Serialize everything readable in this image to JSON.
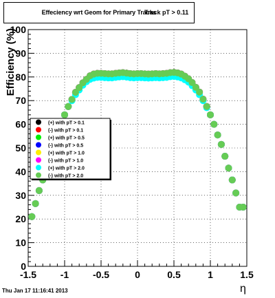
{
  "title": "Effeciency wrt Geom for Primary Tracks",
  "title_overlap": "Track pT > 0.11",
  "footer": "Thu Jan 17 11:16:41 2013",
  "chart_data": {
    "type": "scatter",
    "title": "Effeciency wrt Geom for Primary Tracks",
    "xlabel": "η",
    "ylabel": "Efficiency (%)",
    "xlim": [
      -1.5,
      1.5
    ],
    "ylim": [
      0,
      100
    ],
    "xticks": [
      "-1.5",
      "-1",
      "-0.5",
      "0",
      "0.5",
      "1",
      "1.5"
    ],
    "yticks": [
      "0",
      "10",
      "20",
      "30",
      "40",
      "50",
      "60",
      "70",
      "80",
      "90",
      "100"
    ],
    "grid": true,
    "legend_position": "left-middle",
    "x": [
      -1.45,
      -1.4,
      -1.35,
      -1.3,
      -1.25,
      -1.2,
      -1.15,
      -1.1,
      -1.05,
      -1.0,
      -0.95,
      -0.9,
      -0.85,
      -0.8,
      -0.75,
      -0.7,
      -0.65,
      -0.6,
      -0.55,
      -0.5,
      -0.45,
      -0.4,
      -0.35,
      -0.3,
      -0.25,
      -0.2,
      -0.15,
      -0.1,
      -0.05,
      0.0,
      0.05,
      0.1,
      0.15,
      0.2,
      0.25,
      0.3,
      0.35,
      0.4,
      0.45,
      0.5,
      0.55,
      0.6,
      0.65,
      0.7,
      0.75,
      0.8,
      0.85,
      0.9,
      0.95,
      1.0,
      1.05,
      1.1,
      1.15,
      1.2,
      1.25,
      1.3,
      1.35,
      1.4,
      1.45
    ],
    "series": [
      {
        "name": "(+) with pT > 0.1",
        "color": "#000000",
        "marker": "circle",
        "values": [
          21,
          26.5,
          32,
          36.5,
          41.5,
          46.5,
          51.5,
          55.5,
          60,
          64,
          67.5,
          70.5,
          73.5,
          75.5,
          77.5,
          79,
          80.5,
          81.2,
          81.5,
          81.5,
          81.4,
          81.3,
          81.3,
          81.5,
          81.7,
          81.8,
          81.6,
          81.4,
          81.3,
          81.4,
          81.4,
          81.3,
          81.2,
          81.3,
          81.4,
          81.3,
          81.4,
          81.5,
          81.8,
          81.9,
          81.7,
          81.2,
          80.3,
          79.2,
          77.6,
          75.6,
          73.6,
          70.6,
          67.5,
          64,
          60,
          55.5,
          51.5,
          46.5,
          41.5,
          36.5,
          31,
          25,
          25
        ]
      },
      {
        "name": "(-) with pT > 0.1",
        "color": "#ff0000",
        "marker": "circle",
        "values": [
          21,
          26.5,
          32,
          36.5,
          41.5,
          46.5,
          51.5,
          55.5,
          60,
          64,
          67.5,
          70.5,
          73.5,
          75.5,
          77.5,
          79,
          80.5,
          81.2,
          81.5,
          81.5,
          81.4,
          81.3,
          81.3,
          81.5,
          81.7,
          81.8,
          81.6,
          81.4,
          81.3,
          81.4,
          81.4,
          81.3,
          81.2,
          81.3,
          81.4,
          81.3,
          81.4,
          81.5,
          81.8,
          81.9,
          81.7,
          81.2,
          80.3,
          79.2,
          77.6,
          75.6,
          73.6,
          70.6,
          67.5,
          64,
          60,
          55.5,
          51.5,
          46.5,
          41.5,
          36.5,
          31,
          25,
          25
        ]
      },
      {
        "name": "(+) with pT > 0.5",
        "color": "#00ee00",
        "marker": "circle",
        "values": [
          21,
          26.5,
          32,
          36.5,
          41.5,
          46.5,
          51.5,
          55.5,
          60,
          64,
          67.5,
          70.5,
          73.5,
          75.5,
          77.5,
          79,
          80.5,
          81.2,
          81.5,
          81.5,
          81.4,
          81.3,
          81.3,
          81.5,
          81.7,
          81.8,
          81.6,
          81.4,
          81.3,
          81.4,
          81.4,
          81.3,
          81.2,
          81.3,
          81.4,
          81.3,
          81.4,
          81.5,
          81.8,
          81.9,
          81.7,
          81.2,
          80.3,
          79.2,
          77.6,
          75.6,
          73.6,
          70.6,
          67.5,
          64,
          60,
          55.5,
          51.5,
          46.5,
          41.5,
          36.5,
          31,
          25,
          25
        ]
      },
      {
        "name": "(-) with pT > 0.5",
        "color": "#0000ff",
        "marker": "circle",
        "values": [
          21,
          26.5,
          32,
          36.5,
          41.5,
          46.5,
          51.5,
          55.5,
          60,
          64,
          67.5,
          70.5,
          73.5,
          75.5,
          77.5,
          79,
          80.5,
          81.2,
          81.5,
          81.5,
          81.4,
          81.3,
          81.3,
          81.5,
          81.7,
          81.8,
          81.6,
          81.4,
          81.3,
          81.4,
          81.4,
          81.3,
          81.2,
          81.3,
          81.4,
          81.3,
          81.4,
          81.5,
          81.8,
          81.9,
          81.7,
          81.2,
          80.3,
          79.2,
          77.6,
          75.6,
          73.6,
          70.6,
          67.5,
          64,
          60,
          55.5,
          51.5,
          46.5,
          41.5,
          36.5,
          31,
          25,
          25
        ]
      },
      {
        "name": "(+) with pT > 1.0",
        "color": "#ffee00",
        "marker": "circle",
        "values": [
          21,
          26.5,
          32,
          36.5,
          41.5,
          46.5,
          51.5,
          55.5,
          60,
          64,
          67.5,
          70.5,
          73.5,
          75.5,
          77.5,
          79,
          80.5,
          81.2,
          81.5,
          81.5,
          81.4,
          81.3,
          81.3,
          81.5,
          81.7,
          81.8,
          81.6,
          81.4,
          81.3,
          81.4,
          81.4,
          81.3,
          81.2,
          81.3,
          81.4,
          81.3,
          81.4,
          81.5,
          81.8,
          81.9,
          81.7,
          81.2,
          80.3,
          79.2,
          77.6,
          75.6,
          73.6,
          70.6,
          67.5,
          64,
          60,
          55.5,
          51.5,
          46.5,
          41.5,
          36.5,
          31,
          25,
          25
        ]
      },
      {
        "name": "(-) with pT > 1.0",
        "color": "#ff00ff",
        "marker": "circle",
        "values": [
          21,
          26.5,
          32,
          36.5,
          41.5,
          46.5,
          51.5,
          55.5,
          60,
          64,
          67.5,
          70.5,
          73.5,
          75.5,
          77.5,
          79,
          80.5,
          81.2,
          81.5,
          81.5,
          81.4,
          81.3,
          81.3,
          81.5,
          81.7,
          81.8,
          81.6,
          81.4,
          81.3,
          81.4,
          81.4,
          81.3,
          81.2,
          81.3,
          81.4,
          81.3,
          81.4,
          81.5,
          81.8,
          81.9,
          81.7,
          81.2,
          80.3,
          79.2,
          77.6,
          75.6,
          73.6,
          70.6,
          67.5,
          64,
          60,
          55.5,
          51.5,
          46.5,
          41.5,
          36.5,
          31,
          25,
          25
        ]
      },
      {
        "name": "(+) with pT > 2.0",
        "color": "#00ffff",
        "marker": "circle",
        "values": [
          21,
          26.5,
          32,
          36.5,
          41.5,
          46.5,
          51.5,
          55.5,
          60,
          64,
          67.5,
          70,
          72.5,
          74.5,
          76.5,
          78,
          79,
          79.5,
          79.8,
          79.8,
          79.7,
          79.6,
          79.6,
          79.8,
          80,
          80.1,
          79.9,
          79.7,
          79.6,
          79.7,
          79.7,
          79.6,
          79.5,
          79.6,
          79.7,
          79.6,
          79.7,
          79.8,
          80.1,
          80.2,
          80,
          79.6,
          78.8,
          77.8,
          76.3,
          74.5,
          72.5,
          70,
          67,
          64,
          60,
          55.5,
          51.5,
          46.5,
          41.5,
          36.5,
          31,
          25,
          25
        ]
      },
      {
        "name": "(-) with pT > 2.0",
        "color": "#66cc55",
        "marker": "circle",
        "values": [
          21,
          26.5,
          32,
          36.5,
          41.5,
          46.5,
          51.5,
          55.5,
          60,
          64,
          67.5,
          70.5,
          73.5,
          75.5,
          77.5,
          79,
          80.5,
          81.2,
          81.5,
          81.5,
          81.4,
          81.3,
          81.3,
          81.5,
          81.7,
          81.8,
          81.6,
          81.4,
          81.3,
          81.4,
          81.4,
          81.3,
          81.2,
          81.3,
          81.4,
          81.3,
          81.4,
          81.5,
          81.8,
          81.9,
          81.7,
          81.2,
          80.3,
          79.2,
          77.6,
          75.6,
          73.6,
          70.6,
          67.5,
          64,
          60,
          55.5,
          51.5,
          46.5,
          41.5,
          36.5,
          31,
          25,
          25
        ]
      }
    ]
  }
}
